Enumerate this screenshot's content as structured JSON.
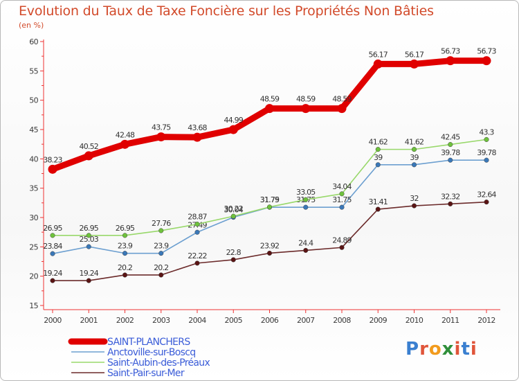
{
  "chart_data": {
    "type": "line",
    "title": "Evolution du Taux de Taxe Foncière sur les Propriétés Non Bâties",
    "subtitle": "(en %)",
    "categories": [
      "2000",
      "2001",
      "2002",
      "2003",
      "2004",
      "2005",
      "2006",
      "2007",
      "2008",
      "2009",
      "2010",
      "2011",
      "2012"
    ],
    "ylim": [
      15,
      60
    ],
    "yticks": [
      15,
      20,
      25,
      30,
      35,
      40,
      45,
      50,
      55,
      60
    ],
    "grid": false,
    "legend_position": "bottom-left",
    "series": [
      {
        "name": "SAINT-PLANCHERS",
        "color": "#e00000",
        "point_color": "#e00000",
        "values": [
          38.23,
          40.52,
          42.48,
          43.75,
          43.68,
          44.99,
          48.59,
          48.59,
          48.59,
          56.17,
          56.17,
          56.73,
          56.73
        ],
        "labels": [
          "38.23",
          "40.52",
          "42.48",
          "43.75",
          "43.68",
          "44.99",
          "48.59",
          "48.59",
          "48.59",
          "56.17",
          "56.17",
          "56.73",
          "56.73"
        ]
      },
      {
        "name": "Anctoville-sur-Boscq",
        "color": "#6c9fd0",
        "point_color": "#3a78b8",
        "values": [
          23.84,
          25.03,
          23.9,
          23.9,
          27.49,
          30.04,
          31.75,
          31.75,
          31.75,
          39,
          39,
          39.78,
          39.78
        ],
        "labels": [
          "23.84",
          "25.03",
          "23.9",
          "23.9",
          "27.49",
          "30.04",
          "31.75",
          "31.75",
          "31.75",
          "39",
          "39",
          "39.78",
          "39.78"
        ]
      },
      {
        "name": "Saint-Aubin-des-Préaux",
        "color": "#98d86a",
        "point_color": "#6ec23c",
        "values": [
          26.95,
          26.95,
          26.95,
          27.76,
          28.87,
          30.22,
          31.79,
          33.05,
          34.04,
          41.62,
          41.62,
          42.45,
          43.3
        ],
        "labels": [
          "26.95",
          "26.95",
          "26.95",
          "27.76",
          "28.87",
          "30.22",
          "31.79",
          "33.05",
          "34.04",
          "41.62",
          "41.62",
          "42.45",
          "43.3"
        ]
      },
      {
        "name": "Saint-Pair-sur-Mer",
        "color": "#6b2a2a",
        "point_color": "#5a1414",
        "values": [
          19.24,
          19.24,
          20.2,
          20.2,
          22.22,
          22.8,
          23.92,
          24.4,
          24.89,
          31.41,
          32,
          32.32,
          32.64
        ],
        "labels": [
          "19.24",
          "19.24",
          "20.2",
          "20.2",
          "22.22",
          "22.8",
          "23.92",
          "24.4",
          "24.89",
          "31.41",
          "32",
          "32.32",
          "32.64"
        ]
      }
    ]
  },
  "branding": {
    "logo_text": "Proxiti",
    "colors": {
      "title": "#d24a2a",
      "axis_label": "#3a3a3a",
      "legend_text": "#3a5cd8"
    }
  }
}
